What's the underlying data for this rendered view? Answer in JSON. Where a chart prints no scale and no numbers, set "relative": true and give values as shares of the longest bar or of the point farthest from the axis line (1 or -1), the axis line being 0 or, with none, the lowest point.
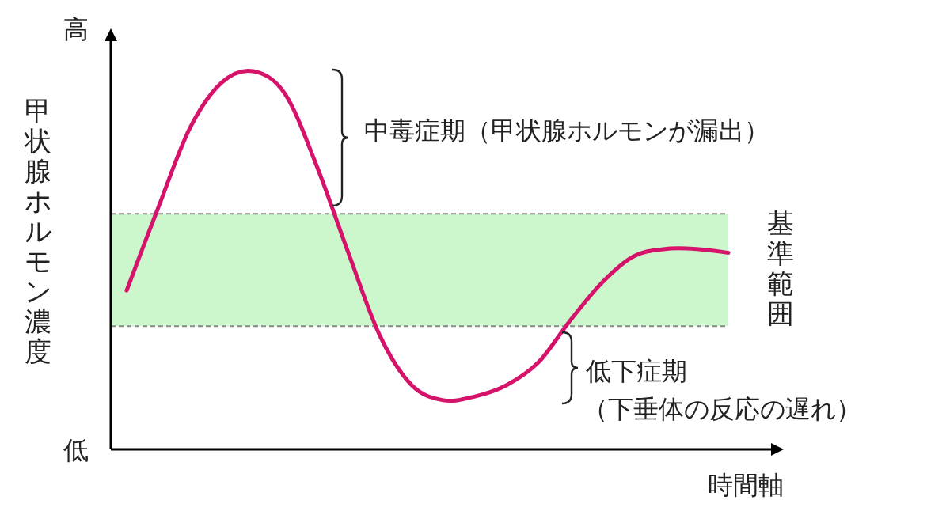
{
  "chart_data": {
    "type": "line",
    "relative": true,
    "xlabel": "時間軸",
    "ylabel": "甲状腺ホルモン濃度",
    "categories": [
      null,
      null,
      null,
      null,
      null,
      null,
      null,
      null,
      null,
      null,
      null,
      null,
      null,
      null,
      null,
      null,
      null,
      null,
      null,
      null
    ],
    "series": [
      {
        "color": "#d6136a",
        "values": [
          0.42,
          0.64,
          0.85,
          0.97,
          1,
          0.94,
          0.75,
          0.52,
          0.3,
          0.17,
          0.13,
          0.14,
          0.17,
          0.23,
          0.34,
          0.44,
          0.51,
          0.53,
          0.53,
          0.52
        ]
      }
    ],
    "ref_lines": [
      {
        "axis": "y",
        "value": 0.623,
        "color": "#888888",
        "line_style": "dashed"
      },
      {
        "axis": "y",
        "value": 0.326,
        "color": "#888888",
        "line_style": "dashed"
      }
    ],
    "bands": [
      {
        "axis": "y",
        "from": 0.326,
        "to": 0.623,
        "label": "基準範囲",
        "color": "#ccf7cc"
      }
    ],
    "annotations": [
      "高",
      "低",
      "中毒症期（甲状腺ホルモンが漏出）",
      "低下症期",
      "（下垂体の反応の遅れ）"
    ]
  }
}
